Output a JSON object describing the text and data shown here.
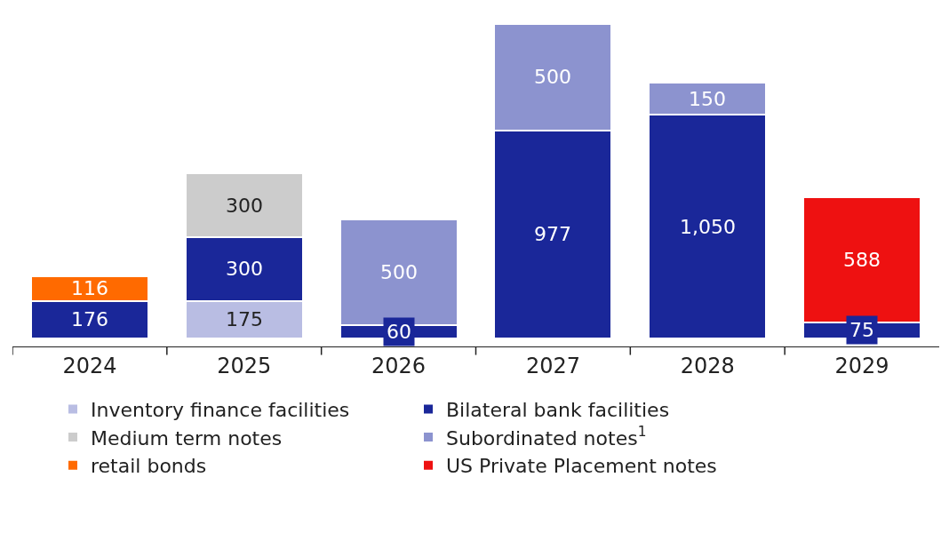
{
  "chart_data": {
    "type": "bar",
    "stacked": true,
    "data_labels": true,
    "legend": "bottom",
    "grid": false,
    "categories": [
      "2024",
      "2025",
      "2026",
      "2027",
      "2028",
      "2029"
    ],
    "series": [
      {
        "name": "Inventory finance facilities",
        "color": "#b9bde3",
        "values": [
          null,
          175,
          null,
          null,
          null,
          null
        ]
      },
      {
        "name": "Bilateral bank facilities",
        "color": "#1a2799",
        "values": [
          176,
          300,
          60,
          977,
          1050,
          75
        ],
        "value_labels": [
          "176",
          "300",
          "60",
          "977",
          "1,050",
          "75"
        ]
      },
      {
        "name": "Medium term notes",
        "color": "#cccccc",
        "values": [
          null,
          300,
          null,
          null,
          null,
          null
        ]
      },
      {
        "name": "Subordinated notes$^{1}$",
        "color": "#8c93cf",
        "values": [
          null,
          null,
          500,
          500,
          150,
          null
        ]
      },
      {
        "name": "retail bonds",
        "color": "#ff6a00",
        "values": [
          116,
          null,
          null,
          null,
          null,
          null
        ]
      },
      {
        "name": "US Private Placement notes",
        "color": "#ee1111",
        "values": [
          null,
          null,
          null,
          null,
          null,
          588
        ]
      }
    ]
  }
}
